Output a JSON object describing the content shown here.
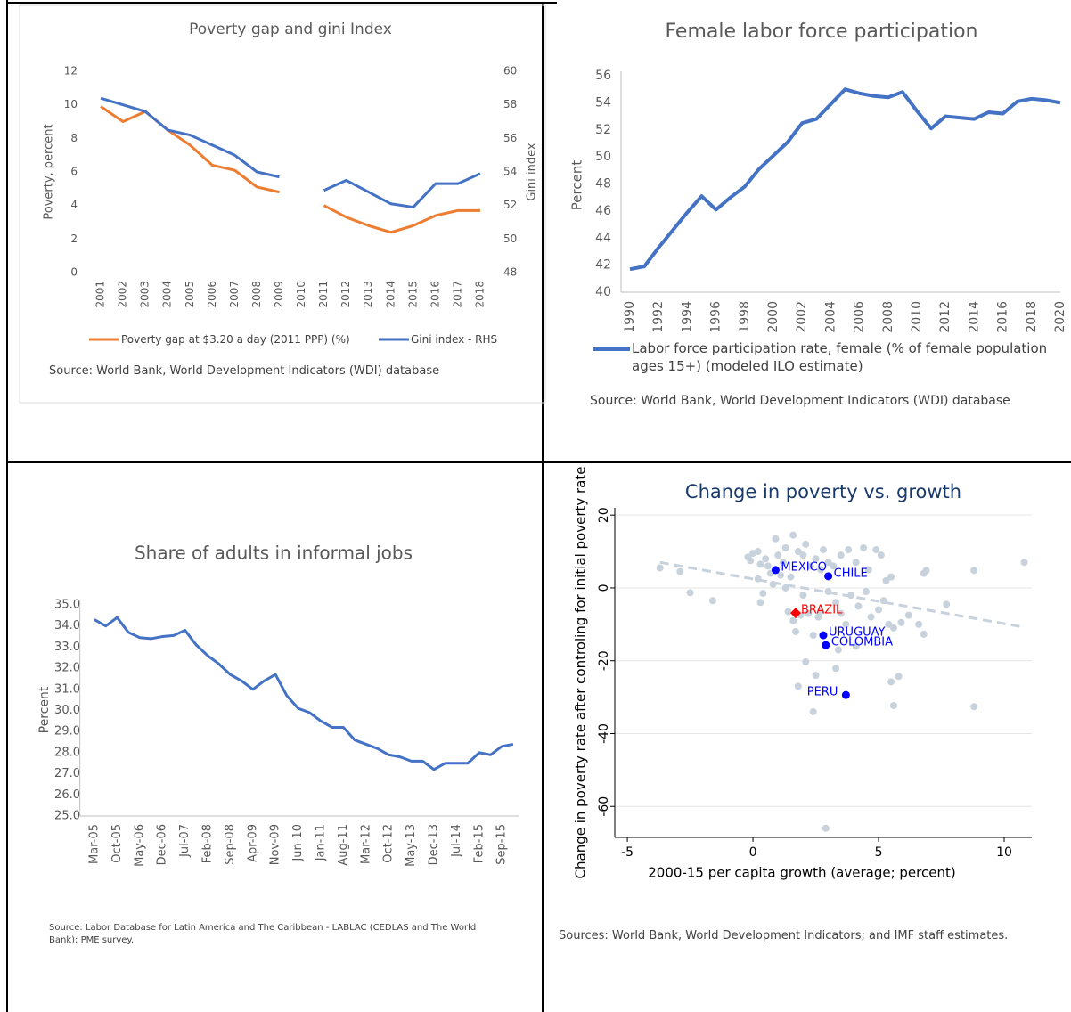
{
  "chart_data": [
    {
      "type": "line",
      "title": "Poverty gap and gini Index",
      "ylabel": "Poverty, percent",
      "y2label": "Gini index",
      "categories": [
        "2001",
        "2002",
        "2003",
        "2004",
        "2005",
        "2006",
        "2007",
        "2008",
        "2009",
        "2010",
        "2011",
        "2012",
        "2013",
        "2014",
        "2015",
        "2016",
        "2017",
        "2018"
      ],
      "series": [
        {
          "name": "Poverty gap at $3.20 a day (2011 PPP) (%)",
          "color": "#ed7d31",
          "values": [
            9.9,
            9.0,
            9.6,
            8.5,
            7.6,
            6.4,
            6.1,
            5.1,
            4.8,
            null,
            4.0,
            3.3,
            2.8,
            2.4,
            2.8,
            3.4,
            3.7,
            3.7
          ]
        },
        {
          "name": "Gini index - RHS",
          "color": "#4472c4",
          "axis": "y2",
          "values": [
            58.4,
            58.0,
            57.6,
            56.5,
            56.2,
            55.6,
            55.0,
            54.0,
            53.7,
            null,
            52.9,
            53.5,
            52.8,
            52.1,
            51.9,
            53.3,
            53.3,
            53.9
          ]
        }
      ],
      "ylim": [
        0,
        12
      ],
      "yticks": [
        0,
        2,
        4,
        6,
        8,
        10,
        12
      ],
      "y2lim": [
        48,
        60
      ],
      "y2ticks": [
        48,
        50,
        52,
        54,
        56,
        58,
        60
      ],
      "legend": "bottom",
      "source": "Source: World Bank, World Development Indicators (WDI) database"
    },
    {
      "type": "line",
      "title": "Female labor force participation",
      "ylabel": "Percent",
      "x": [
        1990,
        1991,
        1992,
        1993,
        1994,
        1995,
        1996,
        1997,
        1998,
        1999,
        2000,
        2001,
        2002,
        2003,
        2004,
        2005,
        2006,
        2007,
        2008,
        2009,
        2010,
        2011,
        2012,
        2013,
        2014,
        2015,
        2016,
        2017,
        2018,
        2019,
        2020
      ],
      "series": [
        {
          "name": "Labor force participation rate, female (% of female population ages 15+) (modeled ILO estimate)",
          "color": "#4472c4",
          "values": [
            41.7,
            41.9,
            43.3,
            44.6,
            45.9,
            47.1,
            46.1,
            47.0,
            47.8,
            49.1,
            50.1,
            51.1,
            52.5,
            52.8,
            53.9,
            55.0,
            54.7,
            54.5,
            54.4,
            54.8,
            53.4,
            52.1,
            53.0,
            52.9,
            52.8,
            53.3,
            53.2,
            54.1,
            54.3,
            54.2,
            54.0
          ]
        }
      ],
      "xlim": [
        1990,
        2020
      ],
      "xticks": [
        1990,
        1992,
        1994,
        1996,
        1998,
        2000,
        2002,
        2004,
        2006,
        2008,
        2010,
        2012,
        2014,
        2016,
        2018,
        2020
      ],
      "ylim": [
        40,
        56
      ],
      "yticks": [
        40,
        42,
        44,
        46,
        48,
        50,
        52,
        54,
        56
      ],
      "legend": "bottom",
      "source": "Source: World Bank, World Development Indicators (WDI) database"
    },
    {
      "type": "line",
      "title": "Share of adults in informal jobs",
      "ylabel": "Percent",
      "categories": [
        "Mar-05",
        null,
        "Oct-05",
        null,
        "May-06",
        null,
        "Dec-06",
        null,
        "Jul-07",
        null,
        "Feb-08",
        null,
        "Sep-08",
        null,
        "Apr-09",
        null,
        "Nov-09",
        null,
        "Jun-10",
        null,
        "Jan-11",
        null,
        "Aug-11",
        null,
        "Mar-12",
        null,
        "Oct-12",
        null,
        "May-13",
        null,
        "Dec-13",
        null,
        "Jul-14",
        null,
        "Feb-15",
        null,
        "Sep-15",
        null
      ],
      "series": [
        {
          "color": "#4472c4",
          "values": [
            34.3,
            34.0,
            34.4,
            33.7,
            33.45,
            33.4,
            33.5,
            33.55,
            33.8,
            33.1,
            32.6,
            32.2,
            31.7,
            31.4,
            31.0,
            31.4,
            31.7,
            30.7,
            30.1,
            29.9,
            29.5,
            29.2,
            29.2,
            28.6,
            28.4,
            28.2,
            27.9,
            27.8,
            27.6,
            27.6,
            27.2,
            27.5,
            27.5,
            27.5,
            28.0,
            27.9,
            28.3,
            28.4
          ]
        }
      ],
      "ylim": [
        25,
        35
      ],
      "yticks": [
        {
          "value": 25,
          "label": "25.0"
        },
        {
          "value": 26,
          "label": "26.0"
        },
        {
          "value": 27,
          "label": "27.0"
        },
        {
          "value": 28,
          "label": "28.0"
        },
        {
          "value": 29,
          "label": "29.0"
        },
        {
          "value": 30,
          "label": "30.0"
        },
        {
          "value": 31,
          "label": "31.0"
        },
        {
          "value": 32,
          "label": "32.0"
        },
        {
          "value": 33,
          "label": "33.0"
        },
        {
          "value": 34,
          "label": "34.0"
        },
        {
          "value": 35,
          "label": "35.0"
        }
      ],
      "source": "Source: Labor Database for Latin America and The Caribbean - LABLAC (CEDLAS and The World Bank); PME survey."
    },
    {
      "type": "scatter",
      "title": "Change in poverty vs. growth",
      "xlabel": "2000-15 per capita growth (average; percent)",
      "ylabel": "Change in poverty rate after controling for initial poverty rate",
      "series": [
        {
          "color": "#c8d2dc",
          "x": [
            -3.7,
            -2.9,
            -2.5,
            -1.6,
            -0.2,
            -0.1,
            0.0,
            0.2,
            0.3,
            0.5,
            0.6,
            0.7,
            0.9,
            1.0,
            1.2,
            1.3,
            1.5,
            1.6,
            1.8,
            2.0,
            2.1,
            2.3,
            2.5,
            2.7,
            2.8,
            3.0,
            3.2,
            3.5,
            3.8,
            4.1,
            4.4,
            4.6,
            4.9,
            5.1,
            5.3,
            0.2,
            0.4,
            0.3,
            0.8,
            1.1,
            1.3,
            1.4,
            1.6,
            1.7,
            2.0,
            2.2,
            2.4,
            2.6,
            3.0,
            3.3,
            3.5,
            3.7,
            3.9,
            4.2,
            4.5,
            4.7,
            5.0,
            5.2,
            5.4,
            5.6,
            5.9,
            6.2,
            6.6,
            5.5,
            6.8,
            6.9,
            7.7,
            8.8,
            10.8,
            6.8,
            5.5,
            5.8,
            5.6,
            8.8,
            2.9,
            2.4,
            1.8,
            2.1,
            3.3,
            3.4,
            2.5,
            4.1,
            1.9,
            2.7
          ],
          "y": [
            5.5,
            4.5,
            -1.3,
            -3.5,
            8.5,
            7.5,
            9.5,
            10,
            6.5,
            8,
            6,
            4,
            13.5,
            9,
            7,
            11,
            3,
            14.5,
            10,
            9,
            12,
            6,
            8,
            5,
            10.5,
            7,
            6,
            9,
            10.5,
            7,
            11,
            5,
            10.5,
            9,
            2,
            2.5,
            -1.5,
            -4,
            1,
            3.5,
            0,
            -6.5,
            -9,
            -12,
            -2,
            -7,
            -13,
            -8,
            -1,
            -4,
            -7,
            -10,
            -2,
            -5,
            -1,
            -8,
            -6,
            -3.5,
            -10,
            -11,
            -9.5,
            -7.5,
            -10,
            3,
            4,
            4.8,
            -4.5,
            4.8,
            7.0,
            -12.7,
            -25.8,
            -24.3,
            -32.3,
            -32.6,
            -66,
            -34,
            -27,
            -20.3,
            -22.1,
            -17,
            -24,
            -16,
            -7.5,
            -6.5
          ]
        },
        {
          "name": "MEXICO",
          "color": "#0000ff",
          "x": [
            0.9
          ],
          "y": [
            4.9
          ]
        },
        {
          "name": "CHILE",
          "color": "#0000ff",
          "x": [
            3.0
          ],
          "y": [
            3.2
          ]
        },
        {
          "name": "BRAZIL",
          "color": "#ff0000",
          "marker": "diamond",
          "x": [
            1.7
          ],
          "y": [
            -6.9
          ]
        },
        {
          "name": "URUGUAY",
          "color": "#0000ff",
          "x": [
            2.8
          ],
          "y": [
            -13.0
          ]
        },
        {
          "name": "COLOMBIA",
          "color": "#0000ff",
          "x": [
            2.9
          ],
          "y": [
            -15.7
          ]
        },
        {
          "name": "PERU",
          "color": "#0000ff",
          "x": [
            3.7
          ],
          "y": [
            -29.4
          ]
        }
      ],
      "trend": {
        "color": "#c8d2dc",
        "x": [
          -3.7,
          10.8
        ],
        "y": [
          7.0,
          -10.8
        ]
      },
      "xlim": [
        -5.5,
        11.1
      ],
      "xticks": [
        -5,
        0,
        5,
        10
      ],
      "ylim": [
        -68.5,
        22
      ],
      "yticks": [
        -60,
        -40,
        -20,
        0,
        20
      ],
      "grid": true,
      "source": "Sources: World Bank, World Development Indicators; and IMF staff estimates."
    }
  ]
}
